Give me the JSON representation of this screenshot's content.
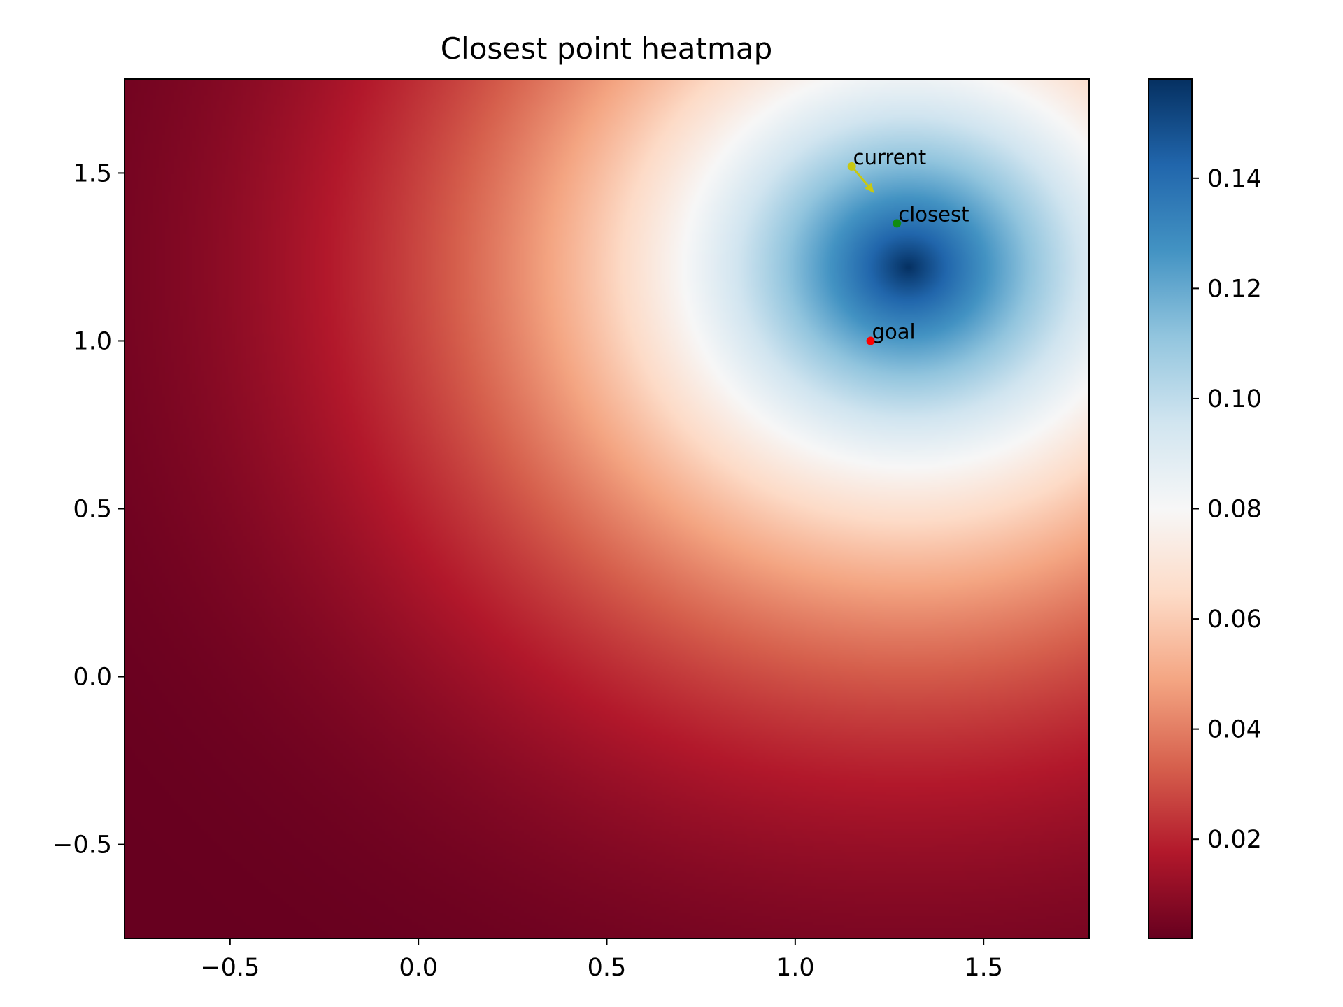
{
  "chart_data": {
    "type": "heatmap",
    "title": "Closest point heatmap",
    "xlabel": "",
    "ylabel": "",
    "xlim": [
      -0.78,
      1.78
    ],
    "ylim": [
      -0.78,
      1.78
    ],
    "xticks": [
      -0.5,
      0.0,
      0.5,
      1.0,
      1.5
    ],
    "xtick_labels": [
      "−0.5",
      "0.0",
      "0.5",
      "1.0",
      "1.5"
    ],
    "yticks": [
      -0.5,
      0.0,
      0.5,
      1.0,
      1.5
    ],
    "ytick_labels": [
      "−0.5",
      "0.0",
      "0.5",
      "1.0",
      "1.5"
    ],
    "colormap": "RdBu",
    "colorbar": {
      "range": [
        0.002,
        0.158
      ],
      "ticks": [
        0.02,
        0.04,
        0.06,
        0.08,
        0.1,
        0.12,
        0.14
      ],
      "tick_labels": [
        "0.02",
        "0.04",
        "0.06",
        "0.08",
        "0.10",
        "0.12",
        "0.14"
      ]
    },
    "field": {
      "peak_center": [
        1.3,
        1.22
      ],
      "peak_value": 0.158,
      "min_value": 0.002
    },
    "points": [
      {
        "label": "current",
        "x": 1.15,
        "y": 1.52,
        "color": "#c8c812"
      },
      {
        "label": "closest",
        "x": 1.27,
        "y": 1.35,
        "color": "#118c11"
      },
      {
        "label": "goal",
        "x": 1.2,
        "y": 1.0,
        "color": "#ff0000"
      }
    ],
    "arrow": {
      "from": [
        1.15,
        1.52
      ],
      "to": [
        1.21,
        1.44
      ],
      "color": "#c8c812"
    },
    "grid": false,
    "legend": "none"
  }
}
